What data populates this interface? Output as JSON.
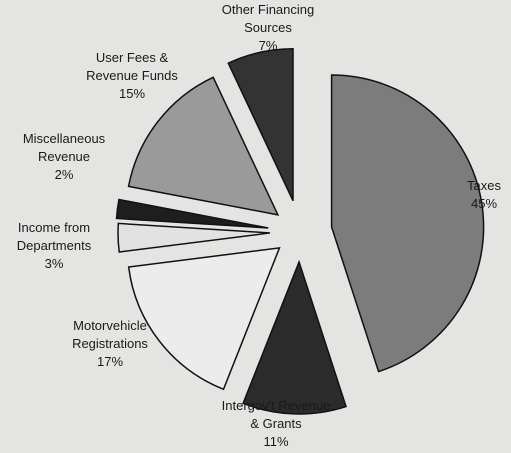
{
  "chart_data": {
    "type": "pie",
    "categories": [
      [
        "Taxes"
      ],
      [
        "Intergov't Revenue",
        "& Grants"
      ],
      [
        "Motorvehicle",
        "Registrations"
      ],
      [
        "Income from",
        "Departments"
      ],
      [
        "Miscellaneous",
        "Revenue"
      ],
      [
        "User Fees &",
        "Revenue Funds"
      ],
      [
        "Other Financing",
        "Sources"
      ]
    ],
    "values": [
      45,
      11,
      17,
      3,
      2,
      15,
      7
    ],
    "value_labels": [
      "45%",
      "11%",
      "17%",
      "3%",
      "2%",
      "15%",
      "7%"
    ],
    "colors": [
      "#7c7c7c",
      "#2b2b2b",
      "#ececec",
      "#e2e2e2",
      "#1e1e1e",
      "#9a9a9a",
      "#333333"
    ]
  }
}
